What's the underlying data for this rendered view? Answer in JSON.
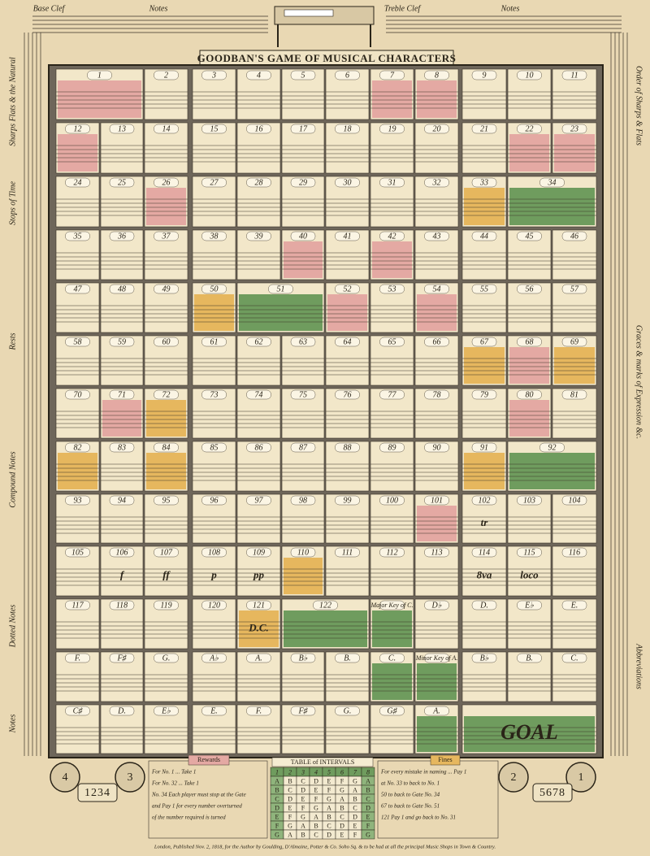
{
  "header": {
    "title": "GOODBAN'S GAME OF MUSICAL CHARACTERS",
    "top_labels": [
      "Base Clef",
      "Notes",
      "Treble Clef",
      "Notes"
    ]
  },
  "side_left": [
    "Sharps Flats & the Natural",
    "Stops of Time",
    "Rests",
    "Compound Notes",
    "Dotted Notes",
    "Notes"
  ],
  "side_right": [
    "Order of Sharps & Flats",
    "Graces & marks of Expression &c.",
    "Abbreviations"
  ],
  "board": {
    "rows": [
      [
        {
          "label": "1",
          "fill": "#e4a9a3"
        },
        {
          "label": "2"
        },
        {
          "label": "3"
        },
        {
          "label": "4"
        },
        {
          "label": "5"
        },
        {
          "label": "6"
        },
        {
          "label": "7",
          "fill": "#e4a9a3"
        },
        {
          "label": "8",
          "fill": "#e4a9a3"
        },
        {
          "label": "9"
        },
        {
          "label": "10"
        },
        {
          "label": "11"
        }
      ],
      [
        {
          "label": "12",
          "fill": "#e4a9a3"
        },
        {
          "label": "13"
        },
        {
          "label": "14"
        },
        {
          "label": "15"
        },
        {
          "label": "16"
        },
        {
          "label": "17"
        },
        {
          "label": "18"
        },
        {
          "label": "19"
        },
        {
          "label": "20"
        },
        {
          "label": "21"
        },
        {
          "label": "22",
          "fill": "#e4a9a3"
        },
        {
          "label": "23",
          "fill": "#e4a9a3"
        }
      ],
      [
        {
          "label": "24"
        },
        {
          "label": "25"
        },
        {
          "label": "26",
          "fill": "#e4a9a3"
        },
        {
          "label": "27"
        },
        {
          "label": "28"
        },
        {
          "label": "29"
        },
        {
          "label": "30"
        },
        {
          "label": "31"
        },
        {
          "label": "32"
        },
        {
          "label": "33",
          "fill": "#e6b75e"
        },
        {
          "label": "34",
          "fill": "#6f9c5e"
        }
      ],
      [
        {
          "label": "35"
        },
        {
          "label": "36"
        },
        {
          "label": "37"
        },
        {
          "label": "38"
        },
        {
          "label": "39"
        },
        {
          "label": "40",
          "fill": "#e4a9a3"
        },
        {
          "label": "41"
        },
        {
          "label": "42",
          "fill": "#e4a9a3"
        },
        {
          "label": "43"
        },
        {
          "label": "44"
        },
        {
          "label": "45"
        },
        {
          "label": "46"
        }
      ],
      [
        {
          "label": "47"
        },
        {
          "label": "48"
        },
        {
          "label": "49"
        },
        {
          "label": "50",
          "fill": "#e6b75e"
        },
        {
          "label": "51",
          "fill": "#6f9c5e"
        },
        {
          "label": "52",
          "fill": "#e4a9a3"
        },
        {
          "label": "53"
        },
        {
          "label": "54",
          "fill": "#e4a9a3"
        },
        {
          "label": "55"
        },
        {
          "label": "56"
        },
        {
          "label": "57"
        }
      ],
      [
        {
          "label": "58"
        },
        {
          "label": "59"
        },
        {
          "label": "60"
        },
        {
          "label": "61"
        },
        {
          "label": "62"
        },
        {
          "label": "63"
        },
        {
          "label": "64"
        },
        {
          "label": "65"
        },
        {
          "label": "66"
        },
        {
          "label": "67",
          "fill": "#e6b75e"
        },
        {
          "label": "68",
          "fill": "#e4a9a3"
        },
        {
          "label": "69",
          "fill": "#e6b75e"
        }
      ],
      [
        {
          "label": "70"
        },
        {
          "label": "71",
          "fill": "#e4a9a3"
        },
        {
          "label": "72",
          "fill": "#e6b75e"
        },
        {
          "label": "73"
        },
        {
          "label": "74"
        },
        {
          "label": "75"
        },
        {
          "label": "76"
        },
        {
          "label": "77"
        },
        {
          "label": "78"
        },
        {
          "label": "79"
        },
        {
          "label": "80",
          "fill": "#e4a9a3"
        },
        {
          "label": "81"
        }
      ],
      [
        {
          "label": "82",
          "fill": "#e6b75e"
        },
        {
          "label": "83"
        },
        {
          "label": "84",
          "fill": "#e6b75e"
        },
        {
          "label": "85"
        },
        {
          "label": "86"
        },
        {
          "label": "87"
        },
        {
          "label": "88"
        },
        {
          "label": "89"
        },
        {
          "label": "90"
        },
        {
          "label": "91",
          "fill": "#e6b75e"
        },
        {
          "label": "92",
          "fill": "#6f9c5e"
        }
      ],
      [
        {
          "label": "93"
        },
        {
          "label": "94"
        },
        {
          "label": "95"
        },
        {
          "label": "96"
        },
        {
          "label": "97"
        },
        {
          "label": "98"
        },
        {
          "label": "99"
        },
        {
          "label": "100"
        },
        {
          "label": "101",
          "fill": "#e4a9a3"
        },
        {
          "label": "102",
          "text": "tr"
        },
        {
          "label": "103"
        },
        {
          "label": "104"
        }
      ],
      [
        {
          "label": "105"
        },
        {
          "label": "106",
          "text": "f"
        },
        {
          "label": "107",
          "text": "ff"
        },
        {
          "label": "108",
          "text": "p"
        },
        {
          "label": "109",
          "text": "pp"
        },
        {
          "label": "110",
          "fill": "#e6b75e"
        },
        {
          "label": "111"
        },
        {
          "label": "112"
        },
        {
          "label": "113"
        },
        {
          "label": "114",
          "text": "8va"
        },
        {
          "label": "115",
          "text": "loco"
        },
        {
          "label": "116"
        }
      ],
      [
        {
          "label": "117"
        },
        {
          "label": "118"
        },
        {
          "label": "119"
        },
        {
          "label": "120"
        },
        {
          "label": "121",
          "fill": "#e6b75e",
          "text": "D.C."
        },
        {
          "label": "122",
          "fill": "#6f9c5e"
        },
        {
          "label": "Major Key of C.",
          "fill": "#6f9c5e"
        },
        {
          "label": "D♭"
        },
        {
          "label": "D."
        },
        {
          "label": "E♭"
        },
        {
          "label": "E."
        }
      ],
      [
        {
          "label": "F."
        },
        {
          "label": "F♯"
        },
        {
          "label": "G."
        },
        {
          "label": "A♭"
        },
        {
          "label": "A."
        },
        {
          "label": "B♭"
        },
        {
          "label": "B."
        },
        {
          "label": "C.",
          "fill": "#6f9c5e"
        },
        {
          "label": "Minor Key of A.",
          "fill": "#6f9c5e"
        },
        {
          "label": "B♭"
        },
        {
          "label": "B."
        },
        {
          "label": "C."
        }
      ],
      [
        {
          "label": "C♯"
        },
        {
          "label": "D."
        },
        {
          "label": "E♭"
        },
        {
          "label": "E."
        },
        {
          "label": "F."
        },
        {
          "label": "F♯"
        },
        {
          "label": "G."
        },
        {
          "label": "G♯"
        },
        {
          "label": "A.",
          "fill": "#6f9c5e"
        },
        {
          "text": "GOAL",
          "fill": "#6f9c5e"
        }
      ]
    ]
  },
  "counters": [
    4,
    3,
    2,
    1
  ],
  "dice": [
    "1234",
    "5678"
  ],
  "rewards": {
    "title": "Rewards",
    "lines": [
      "For No. 1 ... Take 1",
      "For No. 32 ... Take 1",
      "No. 34 Each player must stop at the Gate",
      "and Pay 1 for every number overturned",
      "of the number required is turned"
    ]
  },
  "intervals": {
    "title": "TABLE of INTERVALS",
    "header": [
      1,
      2,
      3,
      4,
      5,
      6,
      7,
      8
    ],
    "rows": [
      [
        "A",
        "B",
        "C",
        "D",
        "E",
        "F",
        "G",
        "A"
      ],
      [
        "B",
        "C",
        "D",
        "E",
        "F",
        "G",
        "A",
        "B"
      ],
      [
        "C",
        "D",
        "E",
        "F",
        "G",
        "A",
        "B",
        "C"
      ],
      [
        "D",
        "E",
        "F",
        "G",
        "A",
        "B",
        "C",
        "D"
      ],
      [
        "E",
        "F",
        "G",
        "A",
        "B",
        "C",
        "D",
        "E"
      ],
      [
        "F",
        "G",
        "A",
        "B",
        "C",
        "D",
        "E",
        "F"
      ],
      [
        "G",
        "A",
        "B",
        "C",
        "D",
        "E",
        "F",
        "G"
      ]
    ]
  },
  "fines": {
    "title": "Fines",
    "lines": [
      "For every mistake in naming ... Pay 1",
      "at No. 33 to back to No. 1",
      "50 to back to Gate No. 34",
      "67 to back to Gate No. 51",
      "121 Pay 1 and go back to No. 31"
    ]
  },
  "footer": "London, Published Nov. 2, 1818, for the Author by Goulding, D'Almaine, Potter & Co. Soho Sq. & to be had at all the principal Music Shops in Town & Country."
}
